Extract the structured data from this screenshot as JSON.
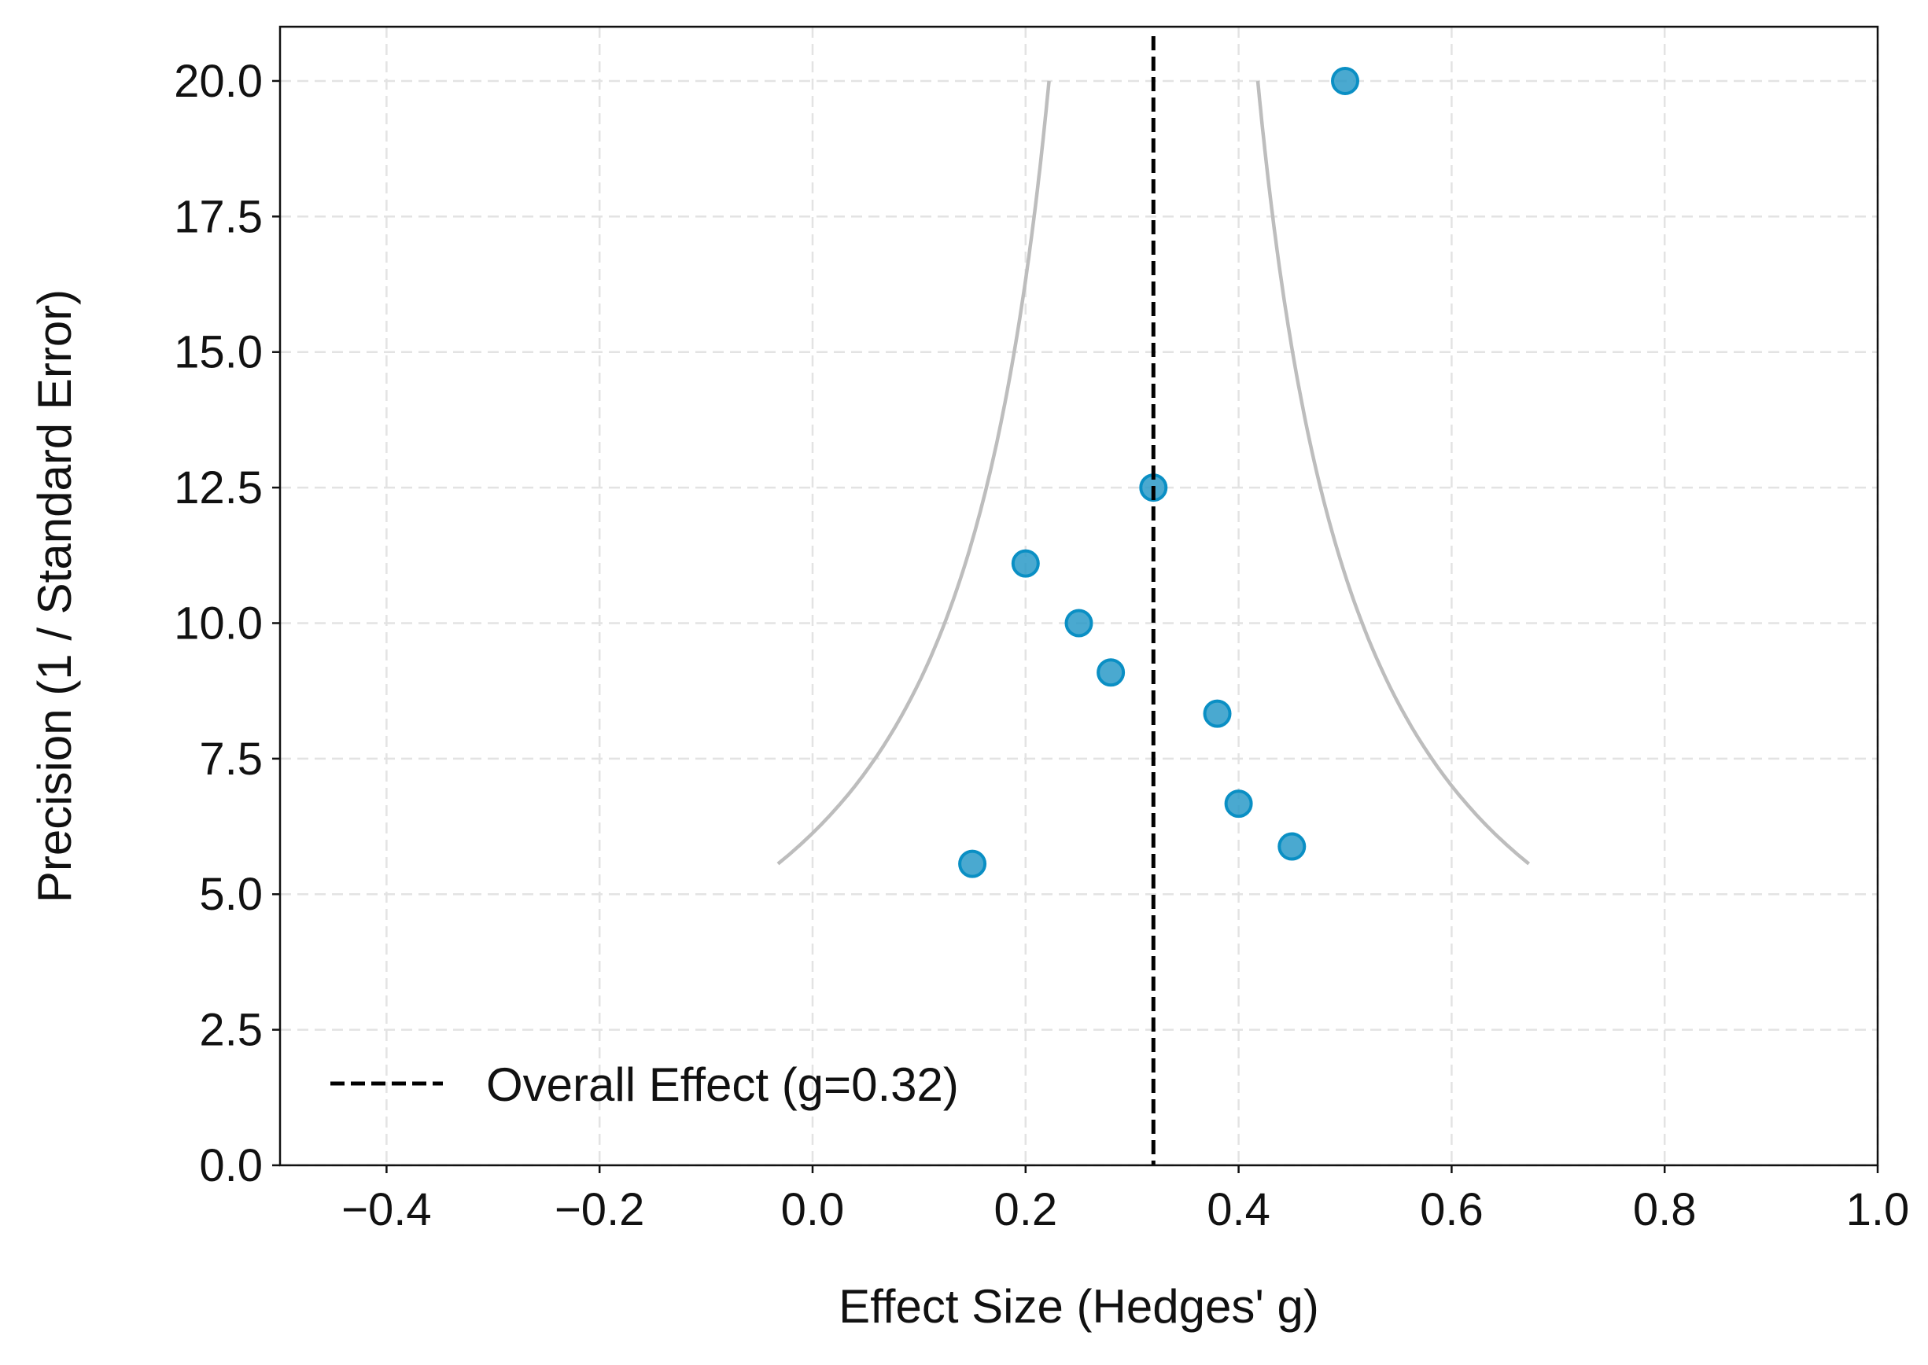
{
  "chart_data": {
    "type": "scatter",
    "title": "",
    "xlabel": "Effect Size (Hedges' g)",
    "ylabel": "Precision (1 / Standard Error)",
    "xlim": [
      -0.5,
      1.0
    ],
    "ylim": [
      0,
      21
    ],
    "xticks": [
      -0.4,
      -0.2,
      0.0,
      0.2,
      0.4,
      0.6,
      0.8,
      1.0
    ],
    "xtick_labels": [
      "−0.4",
      "−0.2",
      "0.0",
      "0.2",
      "0.4",
      "0.6",
      "0.8",
      "1.0"
    ],
    "yticks": [
      0,
      2.5,
      5,
      7.5,
      10,
      12.5,
      15,
      17.5,
      20
    ],
    "ytick_labels": [
      "0.0",
      "2.5",
      "5.0",
      "7.5",
      "10.0",
      "12.5",
      "15.0",
      "17.5",
      "20.0"
    ],
    "grid": true,
    "points": [
      {
        "x": 0.5,
        "y": 20.0
      },
      {
        "x": 0.32,
        "y": 12.5
      },
      {
        "x": 0.2,
        "y": 11.1
      },
      {
        "x": 0.25,
        "y": 10.0
      },
      {
        "x": 0.28,
        "y": 9.09
      },
      {
        "x": 0.38,
        "y": 8.33
      },
      {
        "x": 0.4,
        "y": 6.67
      },
      {
        "x": 0.45,
        "y": 5.88
      },
      {
        "x": 0.15,
        "y": 5.56
      }
    ],
    "overall_effect": 0.32,
    "funnel": {
      "z": 1.96,
      "precision_range": [
        5.56,
        20.0
      ]
    },
    "legend": {
      "placement": "bottom-left",
      "entries": [
        "Overall Effect (g=0.32)"
      ]
    },
    "colors": {
      "point_fill": "#2a9ac8",
      "point_edge": "#0a8fc4",
      "funnel": "#bdbdbd",
      "overall": "#000000",
      "grid": "#e3e3e3"
    }
  }
}
